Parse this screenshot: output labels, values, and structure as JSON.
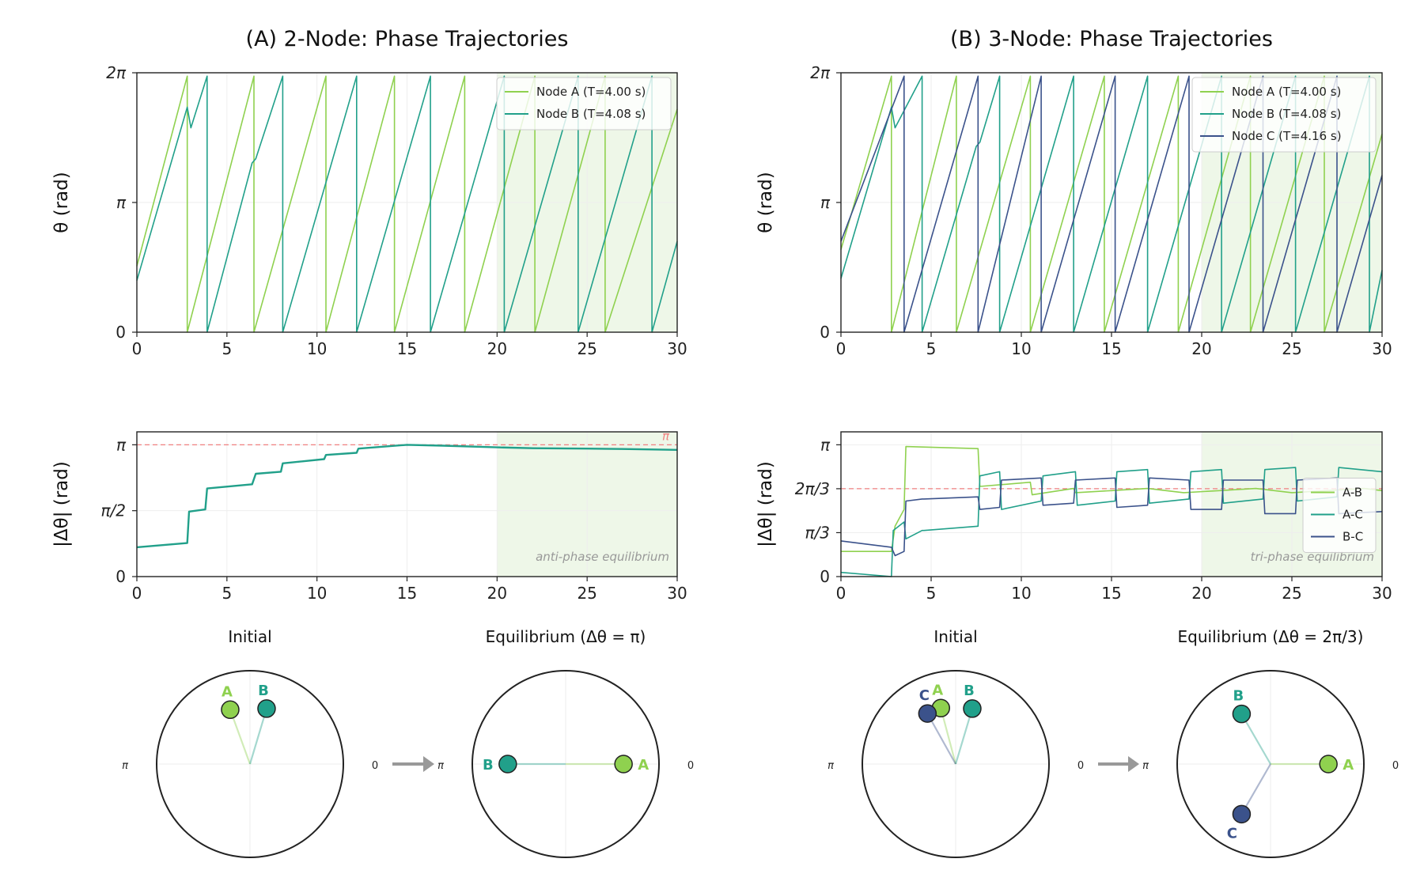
{
  "colors": {
    "node_a": "#8fd14f",
    "node_b": "#21a08a",
    "node_c": "#3b528b",
    "ref_line": "#f08080",
    "equilibrium_shade": "#eef7e8",
    "tick_text": "#222222"
  },
  "chart_data": [
    {
      "type": "line",
      "panel": "A-top",
      "title": "(A) 2-Node: Phase Trajectories",
      "ylabel": "θ (rad)",
      "xlabel": "",
      "xlim": [
        0,
        30
      ],
      "ylim": [
        0,
        6.2832
      ],
      "xticks": [
        "0",
        "5",
        "10",
        "15",
        "20",
        "25",
        "30"
      ],
      "yticks": [
        {
          "v": 0,
          "label": "0"
        },
        {
          "v": 3.1416,
          "label": "π"
        },
        {
          "v": 6.2832,
          "label": "2π"
        }
      ],
      "shaded_region": [
        20,
        30
      ],
      "legend_position": "top-right",
      "series": [
        {
          "name": "Node A (T=4.00 s)",
          "color_key": "node_a",
          "period": 4.0,
          "phase0": 1.6,
          "x": [
            0,
            2.8,
            2.8,
            6.5,
            6.5,
            10.5,
            10.5,
            14.3,
            14.3,
            18.2,
            18.2,
            22.1,
            22.1,
            26.0,
            26.0,
            30
          ],
          "y": [
            1.6,
            6.2,
            0,
            6.2,
            0,
            6.2,
            0,
            6.2,
            0,
            6.2,
            0,
            6.2,
            0,
            6.2,
            0,
            5.4
          ]
        },
        {
          "name": "Node B (T=4.08 s)",
          "color_key": "node_b",
          "x": [
            0,
            2.8,
            3.0,
            3.9,
            3.9,
            6.4,
            6.6,
            8.1,
            8.1,
            12.2,
            12.2,
            16.3,
            16.3,
            20.4,
            20.4,
            24.5,
            24.5,
            28.6,
            28.6,
            30
          ],
          "y": [
            1.25,
            5.45,
            4.95,
            6.2,
            0,
            4.1,
            4.2,
            6.2,
            0,
            6.2,
            0,
            6.2,
            0,
            6.2,
            0,
            6.2,
            0,
            6.2,
            0,
            2.2
          ]
        }
      ]
    },
    {
      "type": "line",
      "panel": "B-top",
      "title": "(B) 3-Node: Phase Trajectories",
      "ylabel": "θ (rad)",
      "xlabel": "",
      "xlim": [
        0,
        30
      ],
      "ylim": [
        0,
        6.2832
      ],
      "xticks": [
        "0",
        "5",
        "10",
        "15",
        "20",
        "25",
        "30"
      ],
      "yticks": [
        {
          "v": 0,
          "label": "0"
        },
        {
          "v": 3.1416,
          "label": "π"
        },
        {
          "v": 6.2832,
          "label": "2π"
        }
      ],
      "shaded_region": [
        20,
        30
      ],
      "legend_position": "top-right",
      "series": [
        {
          "name": "Node A (T=4.00 s)",
          "color_key": "node_a",
          "x": [
            0,
            2.8,
            2.8,
            6.4,
            6.4,
            10.5,
            10.5,
            14.6,
            14.6,
            18.7,
            18.7,
            22.7,
            22.7,
            26.8,
            26.8,
            30
          ],
          "y": [
            2.0,
            6.2,
            0,
            6.2,
            0,
            6.2,
            0,
            6.2,
            0,
            6.2,
            0,
            6.2,
            0,
            6.2,
            0,
            4.8
          ]
        },
        {
          "name": "Node B (T=4.08 s)",
          "color_key": "node_b",
          "x": [
            0,
            2.8,
            3.0,
            4.5,
            4.5,
            7.5,
            7.7,
            8.8,
            8.8,
            12.9,
            12.9,
            17.0,
            17.0,
            21.1,
            21.1,
            25.2,
            25.2,
            29.3,
            29.3,
            30
          ],
          "y": [
            1.3,
            5.45,
            4.95,
            6.2,
            0,
            4.5,
            4.6,
            6.2,
            0,
            6.2,
            0,
            6.2,
            0,
            6.2,
            0,
            6.2,
            0,
            6.2,
            0,
            1.5
          ]
        },
        {
          "name": "Node C (T=4.16 s)",
          "color_key": "node_c",
          "x": [
            0,
            3.5,
            3.5,
            7.6,
            7.6,
            11.1,
            11.1,
            15.2,
            15.2,
            19.3,
            19.3,
            23.4,
            23.4,
            27.5,
            27.5,
            30
          ],
          "y": [
            2.2,
            6.2,
            0,
            6.2,
            0,
            6.2,
            0,
            6.2,
            0,
            6.2,
            0,
            6.2,
            0,
            6.2,
            0,
            3.8
          ]
        }
      ]
    },
    {
      "type": "line",
      "panel": "A-bottom",
      "title": "",
      "ylabel": "|Δθ| (rad)",
      "xlabel": "",
      "xlim": [
        0,
        30
      ],
      "ylim": [
        0,
        3.45
      ],
      "xticks": [
        "0",
        "5",
        "10",
        "15",
        "20",
        "25",
        "30"
      ],
      "yticks": [
        {
          "v": 0,
          "label": "0"
        },
        {
          "v": 1.5708,
          "label": "π/2"
        },
        {
          "v": 3.1416,
          "label": "π"
        }
      ],
      "reference_line": {
        "value": 3.1416,
        "label": "π"
      },
      "shaded_region": [
        20,
        30
      ],
      "shaded_label": "anti-phase equilibrium",
      "series": [
        {
          "name": "",
          "color_key": "node_b",
          "x": [
            0,
            2.8,
            2.9,
            3.8,
            3.9,
            6.4,
            6.6,
            8.0,
            8.1,
            10.4,
            10.5,
            12.2,
            12.3,
            15.0,
            17.0,
            20.0,
            22.0,
            25.0,
            27.0,
            30.0
          ],
          "y": [
            0.7,
            0.8,
            1.55,
            1.6,
            2.1,
            2.2,
            2.45,
            2.5,
            2.7,
            2.8,
            2.9,
            2.95,
            3.05,
            3.14,
            3.12,
            3.08,
            3.06,
            3.05,
            3.04,
            3.02
          ]
        }
      ]
    },
    {
      "type": "line",
      "panel": "B-bottom",
      "title": "",
      "ylabel": "|Δθ| (rad)",
      "xlabel": "",
      "xlim": [
        0,
        30
      ],
      "ylim": [
        0,
        3.45
      ],
      "xticks": [
        "0",
        "5",
        "10",
        "15",
        "20",
        "25",
        "30"
      ],
      "yticks": [
        {
          "v": 0,
          "label": "0"
        },
        {
          "v": 1.0472,
          "label": "π/3"
        },
        {
          "v": 2.0944,
          "label": "2π/3"
        },
        {
          "v": 3.1416,
          "label": "π"
        }
      ],
      "reference_line": {
        "value": 2.0944
      },
      "shaded_region": [
        20,
        30
      ],
      "shaded_label": "tri-phase equilibrium",
      "legend_position": "right",
      "series": [
        {
          "name": "A-B",
          "color_key": "node_a",
          "x": [
            0,
            2.8,
            3.0,
            3.5,
            3.6,
            7.6,
            7.7,
            10.5,
            10.6,
            12.9,
            13.0,
            15.0,
            17.0,
            19.0,
            21.0,
            23.0,
            25.0,
            27.0,
            29.0,
            30.0
          ],
          "y": [
            0.6,
            0.6,
            1.2,
            1.6,
            3.1,
            3.05,
            2.15,
            2.25,
            1.95,
            2.1,
            2.0,
            2.05,
            2.1,
            2.0,
            2.05,
            2.1,
            2.0,
            2.05,
            2.1,
            2.05
          ]
        },
        {
          "name": "A-C",
          "color_key": "node_b",
          "x": [
            0,
            2.8,
            2.9,
            3.5,
            3.6,
            4.5,
            4.6,
            7.6,
            7.7,
            8.8,
            8.9,
            11.1,
            11.2,
            13.0,
            13.1,
            15.2,
            15.3,
            17.0,
            17.1,
            19.3,
            19.4,
            21.1,
            21.2,
            23.4,
            23.5,
            25.2,
            25.3,
            27.5,
            27.6,
            30.0
          ],
          "y": [
            0.1,
            0.0,
            1.1,
            1.3,
            0.9,
            1.1,
            1.1,
            1.2,
            2.4,
            2.5,
            1.6,
            1.8,
            2.4,
            2.5,
            1.7,
            1.8,
            2.5,
            2.55,
            1.75,
            1.85,
            2.5,
            2.55,
            1.75,
            1.85,
            2.55,
            2.6,
            1.8,
            1.9,
            2.6,
            2.5
          ]
        },
        {
          "name": "B-C",
          "color_key": "node_c",
          "x": [
            0,
            2.8,
            3.0,
            3.5,
            3.6,
            4.5,
            4.6,
            7.6,
            7.7,
            8.8,
            8.9,
            11.1,
            11.2,
            12.9,
            13.0,
            15.2,
            15.3,
            17.0,
            17.1,
            19.3,
            19.4,
            21.1,
            21.2,
            23.4,
            23.5,
            25.2,
            25.3,
            27.5,
            27.6,
            30.0
          ],
          "y": [
            0.85,
            0.7,
            0.5,
            0.6,
            1.8,
            1.85,
            1.85,
            1.9,
            1.6,
            1.65,
            2.3,
            2.35,
            1.7,
            1.75,
            2.3,
            2.35,
            1.65,
            1.7,
            2.35,
            2.3,
            1.6,
            1.6,
            2.3,
            2.3,
            1.5,
            1.5,
            2.3,
            2.35,
            1.5,
            1.55
          ]
        }
      ]
    },
    {
      "type": "scatter",
      "panel": "A-phase-initial",
      "title": "Initial",
      "label_left": "π",
      "label_right": "0",
      "points": [
        {
          "name": "A",
          "color_key": "node_a",
          "angle": 1.92,
          "radius": 0.62
        },
        {
          "name": "B",
          "color_key": "node_b",
          "angle": 1.28,
          "radius": 0.62
        }
      ]
    },
    {
      "type": "scatter",
      "panel": "A-phase-equilibrium",
      "title": "Equilibrium (Δθ = π)",
      "label_left": "π",
      "label_right": "0",
      "points": [
        {
          "name": "A",
          "color_key": "node_a",
          "angle": 0,
          "radius": 0.62
        },
        {
          "name": "B",
          "color_key": "node_b",
          "angle": 3.1416,
          "radius": 0.62
        }
      ]
    },
    {
      "type": "scatter",
      "panel": "B-phase-initial",
      "title": "Initial",
      "label_left": "π",
      "label_right": "0",
      "points": [
        {
          "name": "A",
          "color_key": "node_a",
          "angle": 1.83,
          "radius": 0.62
        },
        {
          "name": "B",
          "color_key": "node_b",
          "angle": 1.28,
          "radius": 0.62
        },
        {
          "name": "C",
          "color_key": "node_c",
          "angle": 2.08,
          "radius": 0.62
        }
      ]
    },
    {
      "type": "scatter",
      "panel": "B-phase-equilibrium",
      "title": "Equilibrium (Δθ = 2π/3)",
      "label_left": "π",
      "label_right": "0",
      "points": [
        {
          "name": "A",
          "color_key": "node_a",
          "angle": 0,
          "radius": 0.62
        },
        {
          "name": "B",
          "color_key": "node_b",
          "angle": 2.0944,
          "radius": 0.62
        },
        {
          "name": "C",
          "color_key": "node_c",
          "angle": 4.1888,
          "radius": 0.62
        }
      ]
    }
  ],
  "arrows": [
    {
      "from": "A-phase-initial",
      "to": "A-phase-equilibrium"
    },
    {
      "from": "B-phase-initial",
      "to": "B-phase-equilibrium"
    }
  ]
}
